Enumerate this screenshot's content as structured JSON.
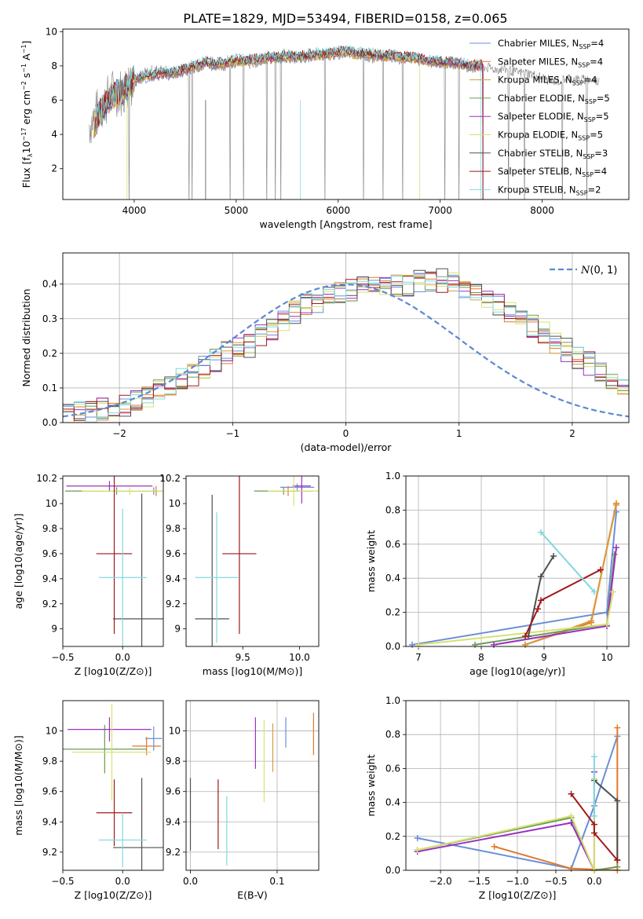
{
  "title": "PLATE=1829, MJD=53494, FIBERID=0158, z=0.065",
  "colors": {
    "ChMI": "#6a8fd8",
    "SaMI": "#e07a2e",
    "KrMI": "#d89a3c",
    "ChEL": "#6c9a58",
    "SaEL": "#9b30c0",
    "KrEL": "#d8e070",
    "ChST": "#505050",
    "SaST": "#a01818",
    "KrST": "#80d8e0",
    "gauss": "#5a8ad0",
    "grid": "#b0b0b0"
  },
  "chart_data": [
    {
      "type": "line",
      "xlabel": "wavelength [Angstrom, rest frame]",
      "ylabel": "Flux [f",
      "ylabel_parts": [
        "Flux [f",
        "λ",
        "10",
        "−17",
        " erg cm",
        "−2",
        " s",
        "−1",
        " A",
        "−1",
        "]"
      ],
      "xlim": [
        3300,
        8850
      ],
      "ylim": [
        0.2,
        10.15
      ],
      "xticks": [
        4000,
        5000,
        6000,
        7000,
        8000
      ],
      "yticks": [
        2,
        4,
        6,
        8,
        10
      ],
      "grid": false,
      "legend_position": "right",
      "legend": [
        {
          "text": "Chabrier MILES, N",
          "sub": "SSP",
          "suffix": "=4",
          "color": "ChMI"
        },
        {
          "text": "Salpeter MILES, N",
          "sub": "SSP",
          "suffix": "=4",
          "color": "SaMI"
        },
        {
          "text": "Kroupa MILES, N",
          "sub": "SSP",
          "suffix": "=4",
          "color": "KrMI"
        },
        {
          "text": "Chabrier ELODIE, N",
          "sub": "SSP",
          "suffix": "=5",
          "color": "ChEL"
        },
        {
          "text": "Salpeter ELODIE, N",
          "sub": "SSP",
          "suffix": "=5",
          "color": "SaEL"
        },
        {
          "text": "Kroupa ELODIE, N",
          "sub": "SSP",
          "suffix": "=5",
          "color": "KrEL"
        },
        {
          "text": "Chabrier STELIB, N",
          "sub": "SSP",
          "suffix": "=3",
          "color": "ChST"
        },
        {
          "text": "Salpeter STELIB, N",
          "sub": "SSP",
          "suffix": "=4",
          "color": "SaST"
        },
        {
          "text": "Kroupa STELIB, N",
          "sub": "SSP",
          "suffix": "=2",
          "color": "KrST"
        }
      ],
      "data_spectrum": {
        "name": "data",
        "color": "#808080",
        "x": [
          3560,
          3700,
          3800,
          3900,
          3950,
          4050,
          4150,
          4250,
          4350,
          4450,
          4550,
          4650,
          4750,
          4850,
          4950,
          5050,
          5150,
          5250,
          5350,
          5450,
          5550,
          5650,
          5750,
          5850,
          5950,
          6050,
          6150,
          6250,
          6350,
          6450,
          6550,
          6650,
          6750,
          6850,
          6950,
          7050,
          7150,
          7250,
          7350,
          7450,
          7550,
          7650,
          7750,
          7850,
          7950,
          8050,
          8150,
          8250,
          8350,
          8450,
          8550
        ],
        "y": [
          4.6,
          5.8,
          6.5,
          6.5,
          7.1,
          7.3,
          7.6,
          7.7,
          7.5,
          7.7,
          7.9,
          8.1,
          8.3,
          8.0,
          8.3,
          8.3,
          8.2,
          8.4,
          8.5,
          8.6,
          8.5,
          8.4,
          8.7,
          8.6,
          8.6,
          8.9,
          8.8,
          8.6,
          8.4,
          8.6,
          8.5,
          8.5,
          8.5,
          8.3,
          8.2,
          8.2,
          8.1,
          8.1,
          8.0,
          7.9,
          7.8,
          7.8,
          7.6,
          7.6,
          7.4,
          7.2,
          7.1,
          7.3,
          7.2,
          7.2,
          7.1
        ]
      },
      "model_spectrum": {
        "x": [
          3600,
          3700,
          3800,
          3900,
          4000,
          4100,
          4200,
          4300,
          4400,
          4500,
          4600,
          4700,
          4800,
          4900,
          5000,
          5100,
          5200,
          5300,
          5400,
          5500,
          5600,
          5700,
          5800,
          5900,
          6000,
          6100,
          6200,
          6300,
          6400,
          6500,
          6600,
          6700,
          6800,
          6900,
          7000,
          7100,
          7200,
          7300,
          7400
        ],
        "y": [
          4.6,
          5.6,
          6.3,
          6.6,
          7.2,
          7.4,
          7.5,
          7.6,
          7.6,
          7.8,
          8.0,
          8.2,
          8.1,
          8.2,
          8.3,
          8.3,
          8.4,
          8.5,
          8.5,
          8.6,
          8.5,
          8.6,
          8.7,
          8.7,
          8.8,
          8.8,
          8.7,
          8.7,
          8.6,
          8.6,
          8.5,
          8.5,
          8.4,
          8.3,
          8.2,
          8.2,
          8.1,
          8.0,
          8.0
        ]
      }
    },
    {
      "type": "bar",
      "xlabel": "(data-model)/error",
      "ylabel": "Normed distribution",
      "xlim": [
        -2.5,
        2.5
      ],
      "ylim": [
        0,
        0.49
      ],
      "xticks": [
        -2,
        -1,
        0,
        1,
        2
      ],
      "xticklabels": [
        "−2",
        "−1",
        "0",
        "1",
        "2"
      ],
      "yticks": [
        0.0,
        0.1,
        0.2,
        0.3,
        0.4
      ],
      "yticklabels": [
        "0.0",
        "0.1",
        "0.2",
        "0.3",
        "0.4"
      ],
      "grid": true,
      "legend_position": "top-right",
      "legend_label": "N(0,1)",
      "bin_width": 0.1,
      "bin_start": -2.5,
      "histogram_heights": [
        0.02,
        0.03,
        0.03,
        0.04,
        0.04,
        0.05,
        0.06,
        0.08,
        0.09,
        0.11,
        0.13,
        0.14,
        0.16,
        0.18,
        0.2,
        0.21,
        0.22,
        0.25,
        0.27,
        0.3,
        0.32,
        0.34,
        0.35,
        0.36,
        0.37,
        0.38,
        0.39,
        0.4,
        0.4,
        0.4,
        0.4,
        0.41,
        0.41,
        0.41,
        0.4,
        0.39,
        0.38,
        0.36,
        0.34,
        0.32,
        0.3,
        0.28,
        0.26,
        0.23,
        0.21,
        0.19,
        0.17,
        0.15,
        0.13,
        0.11,
        0.09,
        0.08,
        0.07,
        0.06,
        0.05,
        0.05,
        0.04,
        0.04,
        0.03,
        0.03
      ]
    },
    {
      "type": "scatter",
      "xlabel": "Z [log10(Z/Z⊙)]",
      "ylabel": "age [log10(age/yr)]",
      "xlim": [
        -0.5,
        0.34
      ],
      "ylim": [
        8.86,
        10.22
      ],
      "xticks": [
        -0.5,
        0.0
      ],
      "xticklabels": [
        "−0.5",
        "0.0"
      ],
      "yticks": [
        9.0,
        9.2,
        9.4,
        9.6,
        9.8,
        10.0,
        10.2
      ],
      "grid": false,
      "errorbars": [
        {
          "color": "ChMI",
          "x": 0.26,
          "y": 10.1,
          "xerr": 0.03,
          "yerr": 0.03
        },
        {
          "color": "SaMI",
          "x": 0.28,
          "y": 10.1,
          "xerr": 0.03,
          "yerr": 0.04
        },
        {
          "color": "ChEL",
          "x": -0.05,
          "y": 10.1,
          "xerr": 0.43,
          "yerr": 0.03
        },
        {
          "color": "SaEL",
          "x": -0.11,
          "y": 10.14,
          "xerr": 0.36,
          "yerr": 0.04
        },
        {
          "color": "KrEL",
          "x": 0.06,
          "y": 10.1,
          "xerr": 0.4,
          "yerr": 0.03
        },
        {
          "color": "ChST",
          "x": 0.16,
          "y": 9.08,
          "xerr": 0.24,
          "yerr": 1.0
        },
        {
          "color": "SaST",
          "x": -0.07,
          "y": 9.6,
          "xerr": 0.15,
          "yerr": 0.64
        },
        {
          "color": "KrST",
          "x": 0.0,
          "y": 9.41,
          "xerr": 0.2,
          "yerr": 0.55
        }
      ]
    },
    {
      "type": "scatter",
      "xlabel": "mass [log10(M/M⊙)]",
      "ylabel": "",
      "xlim": [
        9.0,
        10.17
      ],
      "ylim": [
        8.86,
        10.22
      ],
      "xticks": [
        9.5,
        10.0
      ],
      "xticklabels": [
        "9.5",
        "10.0"
      ],
      "yticks": [
        9.0,
        9.2,
        9.4,
        9.6,
        9.8,
        10.0,
        10.2
      ],
      "grid": false,
      "errorbars": [
        {
          "color": "ChMI",
          "x": 9.98,
          "y": 10.13,
          "xerr": 0.15,
          "yerr": 0.03
        },
        {
          "color": "SaMI",
          "x": 9.9,
          "y": 10.1,
          "xerr": 0.08,
          "yerr": 0.04
        },
        {
          "color": "ChEL",
          "x": 9.86,
          "y": 10.1,
          "xerr": 0.26,
          "yerr": 0.03
        },
        {
          "color": "SaEL",
          "x": 10.02,
          "y": 10.14,
          "xerr": 0.08,
          "yerr": 0.14
        },
        {
          "color": "KrEL",
          "x": 9.95,
          "y": 10.1,
          "xerr": 0.23,
          "yerr": 0.12
        },
        {
          "color": "ChST",
          "x": 9.23,
          "y": 9.08,
          "xerr": 0.15,
          "yerr": 0.99
        },
        {
          "color": "SaST",
          "x": 9.47,
          "y": 9.6,
          "xerr": 0.15,
          "yerr": 0.64
        },
        {
          "color": "KrST",
          "x": 9.27,
          "y": 9.41,
          "xerr": 0.19,
          "yerr": 0.52
        }
      ]
    },
    {
      "type": "line",
      "xlabel": "age [log10(age/yr)]",
      "ylabel": "mass weight",
      "xlim": [
        6.8,
        10.35
      ],
      "ylim": [
        0,
        1
      ],
      "xticks": [
        7,
        8,
        9,
        10
      ],
      "yticks": [
        0.0,
        0.2,
        0.4,
        0.6,
        0.8,
        1.0
      ],
      "yticklabels": [
        "0.0",
        "0.2",
        "0.4",
        "0.6",
        "0.8",
        "1.0"
      ],
      "grid": true,
      "series": [
        {
          "color": "ChMI",
          "x": [
            6.9,
            10.0,
            10.15
          ],
          "y": [
            0.01,
            0.2,
            0.79
          ]
        },
        {
          "color": "SaMI",
          "x": [
            8.7,
            9.75,
            10.15
          ],
          "y": [
            0.01,
            0.14,
            0.84
          ]
        },
        {
          "color": "KrMI",
          "x": [
            8.7,
            9.75,
            10.15
          ],
          "y": [
            0.01,
            0.15,
            0.83
          ]
        },
        {
          "color": "ChEL",
          "x": [
            7.9,
            10.0,
            10.12
          ],
          "y": [
            0.01,
            0.13,
            0.54
          ]
        },
        {
          "color": "SaEL",
          "x": [
            8.2,
            10.0,
            10.15
          ],
          "y": [
            0.01,
            0.12,
            0.58
          ]
        },
        {
          "color": "KrEL",
          "x": [
            7.0,
            10.0,
            10.1
          ],
          "y": [
            0.01,
            0.13,
            0.32
          ]
        },
        {
          "color": "ChST",
          "x": [
            8.75,
            8.95,
            9.15
          ],
          "y": [
            0.06,
            0.41,
            0.53
          ]
        },
        {
          "color": "SaST",
          "x": [
            8.7,
            8.9,
            8.95,
            9.9
          ],
          "y": [
            0.06,
            0.22,
            0.27,
            0.45
          ]
        },
        {
          "color": "KrST",
          "x": [
            8.95,
            9.8
          ],
          "y": [
            0.67,
            0.32
          ]
        }
      ]
    },
    {
      "type": "scatter",
      "xlabel": "Z [log10(Z/Z⊙)]",
      "ylabel": "mass [log10(M/M⊙)]",
      "xlim": [
        -0.5,
        0.34
      ],
      "ylim": [
        9.08,
        10.2
      ],
      "xticks": [
        -0.5,
        0.0
      ],
      "xticklabels": [
        "−0.5",
        "0.0"
      ],
      "yticks": [
        9.2,
        9.4,
        9.6,
        9.8,
        10.0
      ],
      "grid": false,
      "errorbars": [
        {
          "color": "ChMI",
          "x": 0.26,
          "y": 9.95,
          "xerr": 0.07,
          "yerr": 0.08
        },
        {
          "color": "SaMI",
          "x": 0.2,
          "y": 9.9,
          "xerr": 0.12,
          "yerr": 0.06
        },
        {
          "color": "ChEL",
          "x": -0.15,
          "y": 9.88,
          "xerr": 0.35,
          "yerr": 0.16
        },
        {
          "color": "SaEL",
          "x": -0.11,
          "y": 10.01,
          "xerr": 0.35,
          "yerr": 0.08
        },
        {
          "color": "KrEL",
          "x": -0.09,
          "y": 9.86,
          "xerr": 0.33,
          "yerr": 0.32
        },
        {
          "color": "ChST",
          "x": 0.16,
          "y": 9.23,
          "xerr": 0.24,
          "yerr": 0.46
        },
        {
          "color": "SaST",
          "x": -0.07,
          "y": 9.46,
          "xerr": 0.15,
          "yerr": 0.22
        },
        {
          "color": "KrST",
          "x": 0.0,
          "y": 9.28,
          "xerr": 0.2,
          "yerr": 0.18
        }
      ]
    },
    {
      "type": "scatter",
      "xlabel": "E(B-V)",
      "ylabel": "",
      "xlim": [
        -0.005,
        0.148
      ],
      "ylim": [
        9.08,
        10.2
      ],
      "xticks": [
        0.0,
        0.1
      ],
      "xticklabels": [
        "0.0",
        "0.1"
      ],
      "yticks": [
        9.2,
        9.4,
        9.6,
        9.8,
        10.0
      ],
      "grid": true,
      "errorbars": [
        {
          "color": "ChMI",
          "x": 0.11,
          "y": 9.99,
          "xerr": 0,
          "yerr": 0.1
        },
        {
          "color": "SaMI",
          "x": 0.142,
          "y": 9.98,
          "xerr": 0,
          "yerr": 0.14
        },
        {
          "color": "KrMI",
          "x": 0.095,
          "y": 9.89,
          "xerr": 0,
          "yerr": 0.16
        },
        {
          "color": "SaEL",
          "x": 0.075,
          "y": 9.92,
          "xerr": 0,
          "yerr": 0.17
        },
        {
          "color": "KrEL",
          "x": 0.085,
          "y": 9.8,
          "xerr": 0,
          "yerr": 0.27
        },
        {
          "color": "ChST",
          "x": 0.0,
          "y": 9.45,
          "xerr": 0,
          "yerr": 0.24
        },
        {
          "color": "SaST",
          "x": 0.032,
          "y": 9.45,
          "xerr": 0,
          "yerr": 0.23
        },
        {
          "color": "KrST",
          "x": 0.042,
          "y": 9.34,
          "xerr": 0,
          "yerr": 0.23
        }
      ]
    },
    {
      "type": "line",
      "xlabel": "Z [log10(Z/Z⊙)]",
      "ylabel": "mass weight",
      "xlim": [
        -2.45,
        0.45
      ],
      "ylim": [
        0,
        1
      ],
      "xticks": [
        -2.0,
        -1.5,
        -1.0,
        -0.5,
        0.0
      ],
      "xticklabels": [
        "−2.0",
        "−1.5",
        "−1.0",
        "−0.5",
        "0.0"
      ],
      "yticks": [
        0.0,
        0.2,
        0.4,
        0.6,
        0.8,
        1.0
      ],
      "yticklabels": [
        "0.0",
        "0.2",
        "0.4",
        "0.6",
        "0.8",
        "1.0"
      ],
      "grid": true,
      "series": [
        {
          "color": "ChMI",
          "x": [
            -2.3,
            -0.3,
            0.0,
            0.3
          ],
          "y": [
            0.19,
            0.01,
            0.38,
            0.79
          ]
        },
        {
          "color": "SaMI",
          "x": [
            -1.3,
            -0.3,
            0.3,
            0.3
          ],
          "y": [
            0.14,
            0.01,
            0.0,
            0.84
          ]
        },
        {
          "color": "ChEL",
          "x": [
            -2.3,
            -0.3,
            0.0,
            0.3
          ],
          "y": [
            0.12,
            0.31,
            0.0,
            0.02
          ]
        },
        {
          "color": "SaEL",
          "x": [
            -2.3,
            -0.3,
            0.0,
            0.0
          ],
          "y": [
            0.11,
            0.28,
            0.0,
            0.58
          ]
        },
        {
          "color": "KrEL",
          "x": [
            -2.3,
            -0.3,
            0.0,
            0.0
          ],
          "y": [
            0.12,
            0.32,
            0.0,
            0.54
          ]
        },
        {
          "color": "ChST",
          "x": [
            0.0,
            0.3,
            0.3
          ],
          "y": [
            0.53,
            0.41,
            0.06
          ]
        },
        {
          "color": "SaST",
          "x": [
            -0.3,
            0.0,
            0.0,
            0.3
          ],
          "y": [
            0.45,
            0.27,
            0.22,
            0.06
          ]
        },
        {
          "color": "KrST",
          "x": [
            0.0,
            0.0
          ],
          "y": [
            0.67,
            0.32
          ]
        }
      ]
    }
  ]
}
